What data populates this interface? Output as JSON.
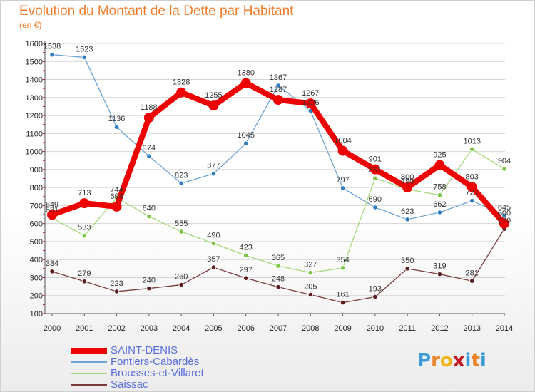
{
  "title": "Evolution du Montant de la Dette par Habitant",
  "subtitle": "(en €)",
  "logo": {
    "text": [
      "P",
      "r",
      "o",
      "x",
      "i",
      "t",
      "i"
    ],
    "colors": [
      "#3a9bd6",
      "#e8852b",
      "#f2b419",
      "#c5161d",
      "#3a9bd6",
      "#e8852b",
      "#3a9bd6"
    ]
  },
  "chart_data": {
    "type": "line",
    "x": [
      "2000",
      "2001",
      "2002",
      "2003",
      "2004",
      "2005",
      "2006",
      "2007",
      "2008",
      "2009",
      "2010",
      "2011",
      "2012",
      "2013",
      "2014"
    ],
    "y_ticks": [
      100,
      200,
      300,
      400,
      500,
      600,
      700,
      800,
      900,
      1000,
      1100,
      1200,
      1300,
      1400,
      1500,
      1600
    ],
    "ylim": [
      100,
      1600
    ],
    "grid": "horizontal",
    "legend_position": "bottom-left",
    "series": [
      {
        "name": "Fontiers-Cabardès",
        "color": "#6fa3d6",
        "marker": "#2f7fc2",
        "width": 1.3,
        "values": [
          1538,
          1523,
          1136,
          974,
          823,
          877,
          1045,
          1367,
          1226,
          797,
          690,
          623,
          662,
          727,
          645
        ],
        "labels": [
          "1538",
          "1523",
          "1136",
          "974",
          "823",
          "877",
          "1045",
          "1367",
          "1226",
          "797",
          "690",
          "623",
          "662",
          "727",
          "645"
        ]
      },
      {
        "name": "Brousses-et-Villaret",
        "color": "#a5d97a",
        "marker": "#7ec545",
        "width": 1.3,
        "values": [
          631,
          533,
          744,
          640,
          555,
          490,
          423,
          365,
          327,
          354,
          851,
          790,
          758,
          1013,
          904
        ],
        "labels": [
          "631",
          "533",
          "744",
          "640",
          "555",
          "490",
          "423",
          "365",
          "327",
          "354",
          "851",
          "790",
          "758",
          "1013",
          "904"
        ]
      },
      {
        "name": "Saissac",
        "color": "#7a3b3b",
        "marker": "#5a1e1e",
        "width": 1.3,
        "values": [
          334,
          279,
          223,
          240,
          260,
          357,
          297,
          248,
          205,
          161,
          193,
          350,
          319,
          281,
          570
        ],
        "labels": [
          "334",
          "279",
          "223",
          "240",
          "260",
          "357",
          "297",
          "248",
          "205",
          "161",
          "193",
          "350",
          "319",
          "281",
          "570"
        ]
      },
      {
        "name": "SAINT-DENIS",
        "color": "#ee0000",
        "marker": "#ee0000",
        "width": 8,
        "values": [
          649,
          713,
          694,
          1188,
          1328,
          1255,
          1380,
          1287,
          1267,
          1004,
          901,
          800,
          925,
          803,
          600
        ],
        "labels": [
          "649",
          "713",
          "694",
          "1188",
          "1328",
          "1255",
          "1380",
          "1287",
          "1267",
          "1004",
          "901",
          "800",
          "925",
          "803",
          "600"
        ]
      }
    ]
  },
  "legend": [
    {
      "name": "SAINT-DENIS",
      "color": "#ee0000",
      "thickness": 9
    },
    {
      "name": "Fontiers-Cabardès",
      "color": "#6fa3d6",
      "thickness": 2
    },
    {
      "name": "Brousses-et-Villaret",
      "color": "#a5d97a",
      "thickness": 2
    },
    {
      "name": "Saissac",
      "color": "#7a3b3b",
      "thickness": 2
    }
  ]
}
